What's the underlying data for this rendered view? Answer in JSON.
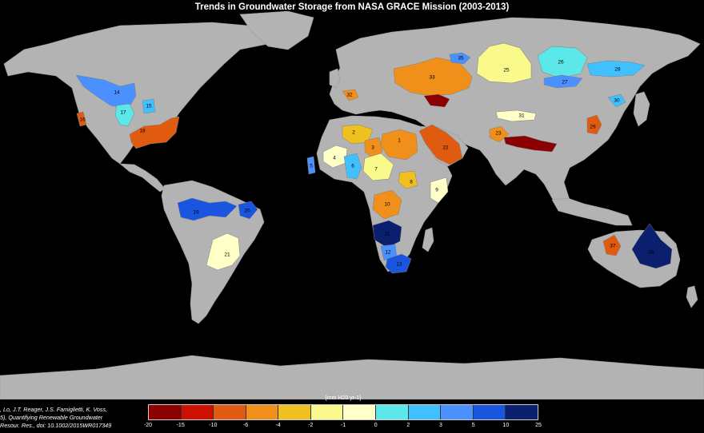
{
  "title": "Trends in Groundwater Storage from NASA GRACE Mission (2003-2013)",
  "legend": {
    "unit_label": "[mm H20 yr-1]",
    "ticks": [
      "-20",
      "-15",
      "-10",
      "-6",
      "-4",
      "-2",
      "-1",
      "0",
      "2",
      "3",
      "5",
      "10",
      "25"
    ],
    "bins": [
      {
        "range": "-20 to -15",
        "color": "#8b0000"
      },
      {
        "range": "-15 to -10",
        "color": "#cc1100"
      },
      {
        "range": "-10 to -6",
        "color": "#e05a10"
      },
      {
        "range": "-6 to -4",
        "color": "#f0901a"
      },
      {
        "range": "-4 to -2",
        "color": "#f0c020"
      },
      {
        "range": "-2 to -1",
        "color": "#fafa8c"
      },
      {
        "range": "-1 to 0",
        "color": "#ffffc8"
      },
      {
        "range": "0 to 2",
        "color": "#5ce8e8"
      },
      {
        "range": "2 to 3",
        "color": "#40c0ff"
      },
      {
        "range": "3 to 5",
        "color": "#4a90ff"
      },
      {
        "range": "5 to 10",
        "color": "#1a55e0"
      },
      {
        "range": "10 to 25",
        "color": "#0a1f6e"
      }
    ]
  },
  "citation": [
    ", Lo, J.T. Reager, J.S. Famiglietti, K. Voss,",
    "5), Quantifying Renewable Groundwater",
    "Resour. Res., doi: 10.1002/2015WR017349"
  ],
  "colors": {
    "background": "#000000",
    "land": "#b3b3b3"
  },
  "aquifers": [
    {
      "id": "1",
      "color": "#f0901a"
    },
    {
      "id": "2",
      "color": "#f0c020"
    },
    {
      "id": "3",
      "color": "#f0901a"
    },
    {
      "id": "4",
      "color": "#ffffc8"
    },
    {
      "id": "5",
      "color": "#4a90ff"
    },
    {
      "id": "6",
      "color": "#40c0ff"
    },
    {
      "id": "7",
      "color": "#fafa8c"
    },
    {
      "id": "8",
      "color": "#f0c020"
    },
    {
      "id": "9",
      "color": "#ffffc8"
    },
    {
      "id": "10",
      "color": "#f0901a"
    },
    {
      "id": "11",
      "color": "#0a1f6e"
    },
    {
      "id": "12",
      "color": "#4a90ff"
    },
    {
      "id": "13",
      "color": "#1a55e0"
    },
    {
      "id": "14",
      "color": "#4a90ff"
    },
    {
      "id": "15",
      "color": "#40c0ff"
    },
    {
      "id": "16",
      "color": "#e05a10"
    },
    {
      "id": "17",
      "color": "#5ce8e8"
    },
    {
      "id": "18",
      "color": "#e05a10"
    },
    {
      "id": "19",
      "color": "#1a55e0"
    },
    {
      "id": "20",
      "color": "#1a55e0"
    },
    {
      "id": "21",
      "color": "#ffffc8"
    },
    {
      "id": "22",
      "color": "#e05a10"
    },
    {
      "id": "23",
      "color": "#f0901a"
    },
    {
      "id": "24",
      "color": "#8b0000"
    },
    {
      "id": "25",
      "color": "#fafa8c"
    },
    {
      "id": "26",
      "color": "#5ce8e8"
    },
    {
      "id": "27",
      "color": "#4a90ff"
    },
    {
      "id": "28",
      "color": "#40c0ff"
    },
    {
      "id": "29",
      "color": "#e05a10"
    },
    {
      "id": "30",
      "color": "#40c0ff"
    },
    {
      "id": "31",
      "color": "#ffffc8"
    },
    {
      "id": "32",
      "color": "#f0901a"
    },
    {
      "id": "33",
      "color": "#f0901a"
    },
    {
      "id": "34",
      "color": "#8b0000"
    },
    {
      "id": "35",
      "color": "#4a90ff"
    },
    {
      "id": "36",
      "color": "#0a1f6e"
    },
    {
      "id": "37",
      "color": "#e05a10"
    }
  ]
}
